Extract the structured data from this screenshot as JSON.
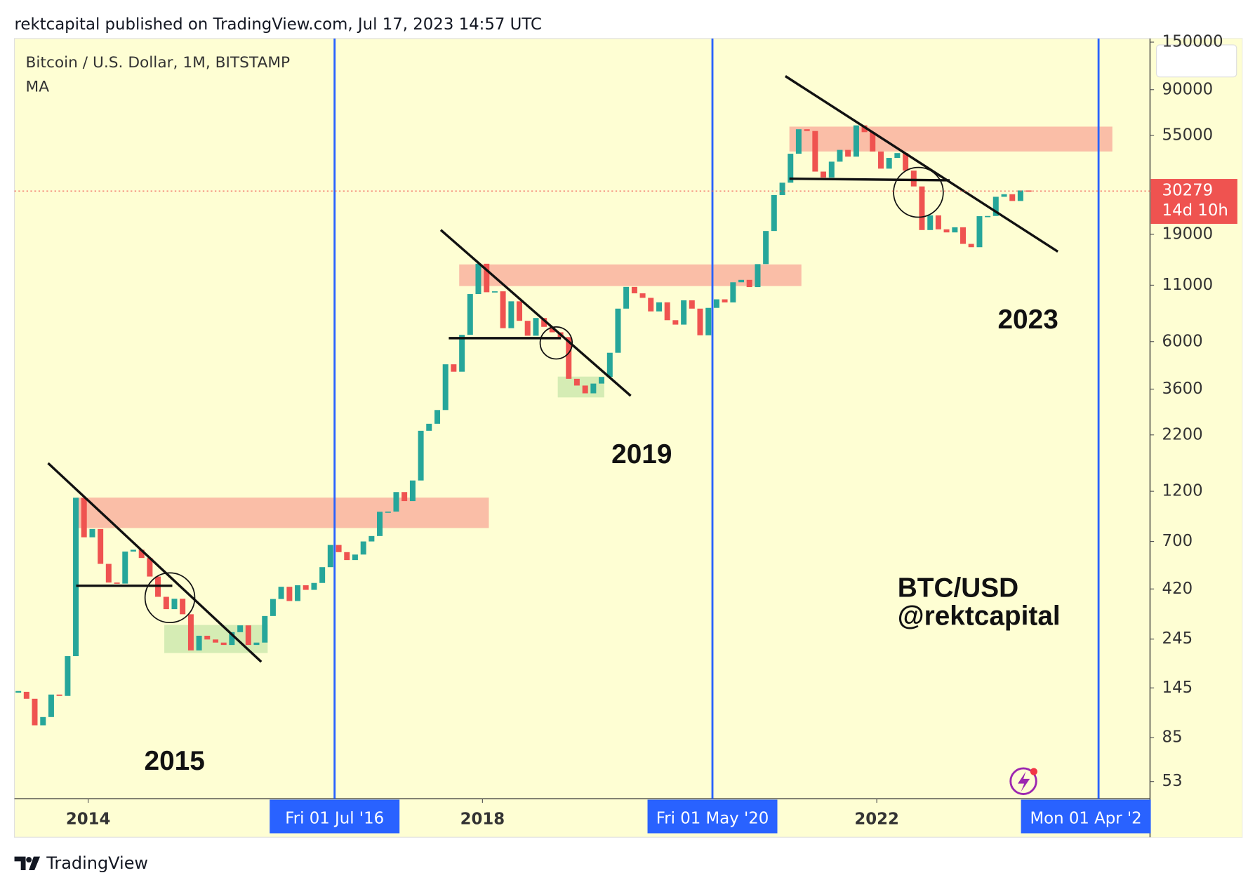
{
  "header": "rektcapital published on TradingView.com, Jul 17, 2023 14:57 UTC",
  "footer": "TradingView",
  "chart_data": {
    "type": "candlestick",
    "title": "Bitcoin / U.S. Dollar, 1M, BITSTAMP",
    "subtitle": "MA",
    "log_scale": true,
    "up_color": "#26a69a",
    "down_color": "#ef5350",
    "highlight_color": "#2962ff",
    "x": [
      2013.292,
      2013.375,
      2013.458,
      2013.542,
      2013.625,
      2013.708,
      2013.792,
      2013.875,
      2013.958,
      2014.042,
      2014.125,
      2014.208,
      2014.292,
      2014.375,
      2014.458,
      2014.542,
      2014.625,
      2014.708,
      2014.792,
      2014.875,
      2014.958,
      2015.042,
      2015.125,
      2015.208,
      2015.292,
      2015.375,
      2015.458,
      2015.542,
      2015.625,
      2015.708,
      2015.792,
      2015.875,
      2015.958,
      2016.042,
      2016.125,
      2016.208,
      2016.292,
      2016.375,
      2016.458,
      2016.542,
      2016.625,
      2016.708,
      2016.792,
      2016.875,
      2016.958,
      2017.042,
      2017.125,
      2017.208,
      2017.292,
      2017.375,
      2017.458,
      2017.542,
      2017.625,
      2017.708,
      2017.792,
      2017.875,
      2017.958,
      2018.042,
      2018.125,
      2018.208,
      2018.292,
      2018.375,
      2018.458,
      2018.542,
      2018.625,
      2018.708,
      2018.792,
      2018.875,
      2018.958,
      2019.042,
      2019.125,
      2019.208,
      2019.292,
      2019.375,
      2019.458,
      2019.542,
      2019.625,
      2019.708,
      2019.792,
      2019.875,
      2019.958,
      2020.042,
      2020.125,
      2020.208,
      2020.292,
      2020.375,
      2020.458,
      2020.542,
      2020.625,
      2020.708,
      2020.792,
      2020.875,
      2020.958,
      2021.042,
      2021.125,
      2021.208,
      2021.292,
      2021.375,
      2021.458,
      2021.542,
      2021.625,
      2021.708,
      2021.792,
      2021.875,
      2021.958,
      2022.042,
      2022.125,
      2022.208,
      2022.292,
      2022.375,
      2022.458,
      2022.542,
      2022.625,
      2022.708,
      2022.792,
      2022.875,
      2022.958,
      2023.042,
      2023.125,
      2023.208,
      2023.292,
      2023.375,
      2023.458,
      2023.542
    ],
    "close": [
      139,
      129,
      97,
      106,
      135,
      133,
      204,
      1120,
      732,
      800,
      550,
      450,
      445,
      628,
      640,
      586,
      480,
      386,
      338,
      378,
      320,
      217,
      254,
      244,
      236,
      230,
      264,
      284,
      230,
      236,
      314,
      377,
      430,
      369,
      437,
      416,
      448,
      531,
      674,
      624,
      573,
      608,
      700,
      742,
      963,
      965,
      1190,
      1080,
      1348,
      2300,
      2480,
      2875,
      4700,
      4340,
      6450,
      10000,
      13850,
      10200,
      10300,
      6930,
      9250,
      7500,
      6390,
      7730,
      7030,
      6630,
      6300,
      4020,
      3740,
      3440,
      3820,
      4100,
      5320,
      8550,
      10800,
      10080,
      9600,
      8300,
      9150,
      7550,
      7200,
      9350,
      8550,
      6420,
      8620,
      9450,
      9140,
      11350,
      11650,
      10780,
      13800,
      19700,
      28990,
      33100,
      45200,
      58800,
      57700,
      37300,
      35000,
      41500,
      47100,
      43800,
      61300,
      57000,
      46300,
      38500,
      43200,
      45500,
      37700,
      31800,
      19900,
      23300,
      20050,
      19400,
      20500,
      17150,
      16550,
      23100,
      23150,
      28450,
      29250,
      27200,
      30450,
      30279
    ],
    "xlim": [
      2013.252,
      2024.772
    ],
    "ylim": [
      44,
      156000
    ],
    "xticks": [
      2014,
      {
        "value": 2016.5,
        "label": "Fri 01 Jul '16"
      },
      2018,
      {
        "value": 2020.333,
        "label": "Fri 01 May '20"
      },
      2022,
      {
        "value": 2024.25,
        "label": "Mon 01 Apr '2"
      }
    ],
    "yticks": [
      53,
      85,
      145,
      245,
      420,
      700,
      1200,
      2200,
      3600,
      6000,
      11000,
      19000,
      55000,
      90000,
      150000
    ],
    "last_price": 30279,
    "countdown": "14d 10h",
    "annotations": [
      "2015",
      "2019",
      "2023",
      "BTC/USD",
      "@rektcapital"
    ]
  }
}
